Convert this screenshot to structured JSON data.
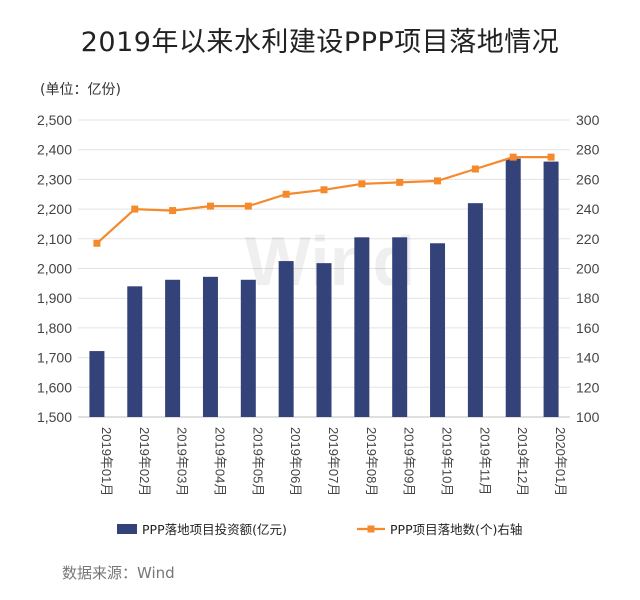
{
  "chart_data": {
    "type": "bar+line",
    "title": "2019年以来水利建设PPP项目落地情况",
    "unit_label": "(单位：亿份)",
    "source": "数据来源：Wind",
    "watermark": "Wind",
    "categories": [
      "2019年01月",
      "2019年02月",
      "2019年03月",
      "2019年04月",
      "2019年05月",
      "2019年06月",
      "2019年07月",
      "2019年08月",
      "2019年09月",
      "2019年10月",
      "2019年11月",
      "2019年12月",
      "2020年01月"
    ],
    "series": [
      {
        "name": "PPP落地项目投资额(亿元)",
        "type": "bar",
        "axis": "left",
        "color": "#34427A",
        "values": [
          1722,
          1940,
          1962,
          1972,
          1962,
          2025,
          2018,
          2105,
          2105,
          2085,
          2220,
          2370,
          2360
        ]
      },
      {
        "name": "PPP项目落地数(个)右轴",
        "type": "line",
        "axis": "right",
        "color": "#F58A2C",
        "values": [
          217,
          240,
          239,
          242,
          242,
          250,
          253,
          257,
          258,
          259,
          267,
          275,
          275
        ]
      }
    ],
    "y_left": {
      "min": 1500,
      "max": 2500,
      "ticks": [
        "1,500",
        "1,600",
        "1,700",
        "1,800",
        "1,900",
        "2,000",
        "2,100",
        "2,200",
        "2,300",
        "2,400",
        "2,500"
      ]
    },
    "y_right": {
      "min": 100,
      "max": 300,
      "ticks": [
        "100",
        "120",
        "140",
        "160",
        "180",
        "200",
        "220",
        "240",
        "260",
        "280",
        "300"
      ]
    },
    "grid": true,
    "legend_position": "bottom"
  }
}
